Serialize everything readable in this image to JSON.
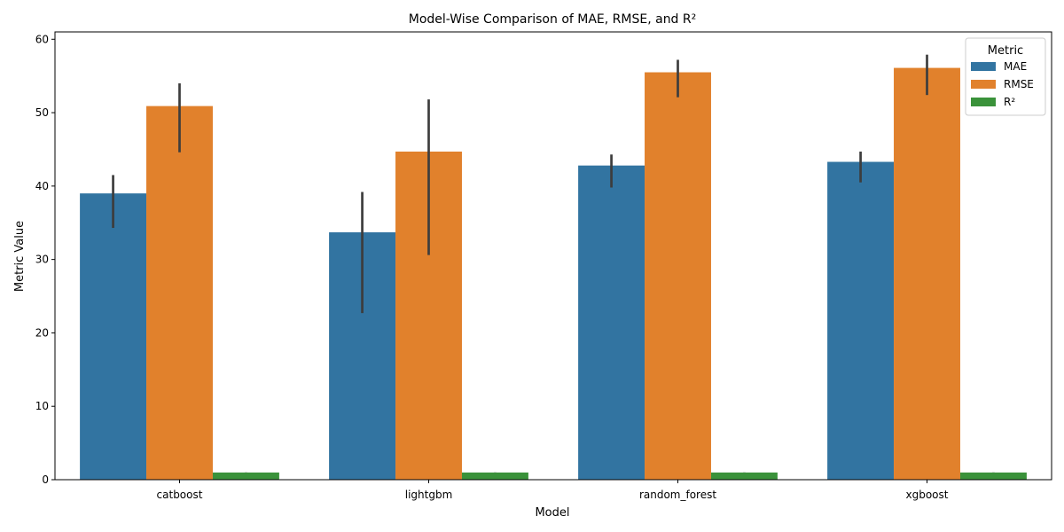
{
  "chart_data": {
    "type": "bar",
    "title": "Model-Wise Comparison of MAE, RMSE, and R²",
    "xlabel": "Model",
    "ylabel": "Metric Value",
    "categories": [
      "catboost",
      "lightgbm",
      "random_forest",
      "xgboost"
    ],
    "ylim": [
      0,
      61
    ],
    "yticks": [
      0,
      10,
      20,
      30,
      40,
      50,
      60
    ],
    "grid": false,
    "legend": {
      "title": "Metric",
      "placement": "top-right"
    },
    "series": [
      {
        "name": "MAE",
        "color": "#3274a1",
        "values": [
          39.0,
          33.7,
          42.8,
          43.3
        ],
        "error_low": [
          34.3,
          22.7,
          39.8,
          40.5
        ],
        "error_high": [
          41.5,
          39.2,
          44.3,
          44.7
        ]
      },
      {
        "name": "RMSE",
        "color": "#e1812c",
        "values": [
          50.9,
          44.7,
          55.5,
          56.1
        ],
        "error_low": [
          44.6,
          30.6,
          52.1,
          52.4
        ],
        "error_high": [
          54.0,
          51.8,
          57.2,
          57.9
        ]
      },
      {
        "name": "R²",
        "color": "#3a923a",
        "values": [
          0.98,
          0.98,
          0.98,
          0.98
        ],
        "error_low": [
          0.97,
          0.97,
          0.97,
          0.97
        ],
        "error_high": [
          0.99,
          0.99,
          0.99,
          0.99
        ]
      }
    ],
    "errorbar_color": "#3d3d3d"
  }
}
